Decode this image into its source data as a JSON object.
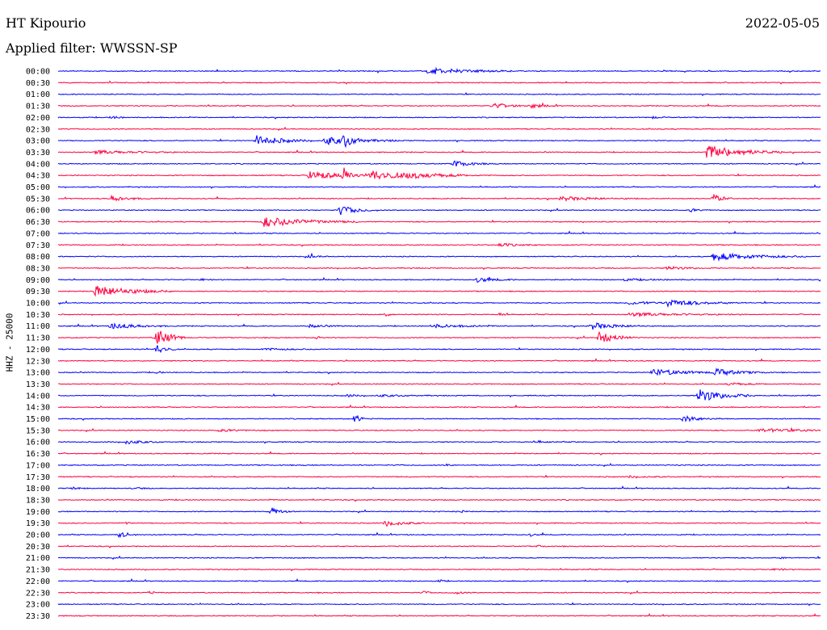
{
  "header": {
    "station": "HT Kipourio",
    "date": "2022-05-05",
    "filter": "Applied filter: WWSSN-SP",
    "channel": "HHZ - 25000"
  },
  "colors": {
    "even_hour": "#0000ff",
    "half_hour": "#ff0040",
    "text": "#000000",
    "background": "#ffffff"
  },
  "chart_data": {
    "type": "line",
    "title": "",
    "xlabel": "",
    "ylabel": "HHZ - 25000",
    "grid": false,
    "legend": "none",
    "rows": [
      {
        "label": "00:00",
        "events": [
          [
            0.485,
            1.0,
            0.045
          ]
        ]
      },
      {
        "label": "00:30",
        "events": []
      },
      {
        "label": "01:00",
        "events": []
      },
      {
        "label": "01:30",
        "events": [
          [
            0.57,
            0.8,
            0.02
          ],
          [
            0.62,
            0.6,
            0.015
          ]
        ]
      },
      {
        "label": "02:00",
        "events": [
          [
            0.07,
            0.4,
            0.01
          ],
          [
            0.78,
            0.3,
            0.01
          ]
        ]
      },
      {
        "label": "02:30",
        "events": []
      },
      {
        "label": "03:00",
        "events": [
          [
            0.26,
            1.6,
            0.03
          ],
          [
            0.35,
            1.2,
            0.04
          ],
          [
            0.375,
            1.5,
            0.01
          ]
        ]
      },
      {
        "label": "03:30",
        "events": [
          [
            0.05,
            0.5,
            0.05
          ],
          [
            0.85,
            2.2,
            0.04
          ]
        ]
      },
      {
        "label": "04:00",
        "events": [
          [
            0.52,
            0.9,
            0.02
          ]
        ]
      },
      {
        "label": "04:30",
        "events": [
          [
            0.33,
            1.2,
            0.04
          ],
          [
            0.375,
            2.5,
            0.005
          ],
          [
            0.41,
            1.3,
            0.05
          ],
          [
            0.46,
            0.5,
            0.04
          ]
        ]
      },
      {
        "label": "05:00",
        "events": []
      },
      {
        "label": "05:30",
        "events": [
          [
            0.07,
            0.8,
            0.02
          ],
          [
            0.66,
            0.6,
            0.04
          ],
          [
            0.86,
            1.3,
            0.01
          ]
        ]
      },
      {
        "label": "06:00",
        "events": [
          [
            0.37,
            1.4,
            0.02
          ],
          [
            0.83,
            0.4,
            0.01
          ]
        ]
      },
      {
        "label": "06:30",
        "events": [
          [
            0.27,
            1.6,
            0.05
          ]
        ]
      },
      {
        "label": "07:00",
        "events": []
      },
      {
        "label": "07:30",
        "events": [
          [
            0.58,
            0.5,
            0.02
          ]
        ]
      },
      {
        "label": "08:00",
        "events": [
          [
            0.33,
            0.5,
            0.01
          ],
          [
            0.86,
            1.2,
            0.05
          ]
        ]
      },
      {
        "label": "08:30",
        "events": [
          [
            0.8,
            0.5,
            0.02
          ]
        ]
      },
      {
        "label": "09:00",
        "events": [
          [
            0.19,
            0.4,
            0.005
          ],
          [
            0.55,
            0.7,
            0.02
          ],
          [
            0.74,
            0.3,
            0.04
          ]
        ]
      },
      {
        "label": "09:30",
        "events": [
          [
            0.05,
            1.8,
            0.04
          ]
        ]
      },
      {
        "label": "10:00",
        "events": [
          [
            0.75,
            0.5,
            0.03
          ],
          [
            0.8,
            1.0,
            0.04
          ]
        ]
      },
      {
        "label": "10:30",
        "events": [
          [
            0.43,
            0.5,
            0.005
          ],
          [
            0.58,
            0.5,
            0.005
          ],
          [
            0.75,
            0.5,
            0.06
          ]
        ]
      },
      {
        "label": "11:00",
        "events": [
          [
            0.07,
            0.9,
            0.03
          ],
          [
            0.33,
            0.4,
            0.02
          ],
          [
            0.49,
            0.5,
            0.04
          ],
          [
            0.7,
            1.0,
            0.03
          ]
        ]
      },
      {
        "label": "11:30",
        "events": [
          [
            0.13,
            3.0,
            0.015
          ],
          [
            0.34,
            0.5,
            0.005
          ],
          [
            0.71,
            1.7,
            0.02
          ]
        ]
      },
      {
        "label": "12:00",
        "events": [
          [
            0.13,
            1.5,
            0.01
          ],
          [
            0.27,
            0.3,
            0.03
          ]
        ]
      },
      {
        "label": "12:30",
        "events": []
      },
      {
        "label": "13:00",
        "events": [
          [
            0.78,
            1.0,
            0.04
          ],
          [
            0.86,
            1.0,
            0.03
          ],
          [
            0.13,
            0.4,
            0.005
          ]
        ]
      },
      {
        "label": "13:30",
        "events": [
          [
            0.88,
            0.4,
            0.02
          ]
        ]
      },
      {
        "label": "14:00",
        "events": [
          [
            0.84,
            2.0,
            0.03
          ],
          [
            0.38,
            0.4,
            0.01
          ],
          [
            0.42,
            0.3,
            0.03
          ]
        ]
      },
      {
        "label": "14:30",
        "events": []
      },
      {
        "label": "15:00",
        "events": [
          [
            0.39,
            1.6,
            0.005
          ],
          [
            0.82,
            0.9,
            0.02
          ]
        ]
      },
      {
        "label": "15:30",
        "events": [
          [
            0.21,
            0.3,
            0.03
          ],
          [
            0.92,
            0.5,
            0.06
          ]
        ]
      },
      {
        "label": "16:00",
        "events": [
          [
            0.09,
            0.6,
            0.02
          ],
          [
            0.63,
            0.3,
            0.01
          ]
        ]
      },
      {
        "label": "16:30",
        "events": []
      },
      {
        "label": "17:00",
        "events": [
          [
            0.51,
            0.3,
            0.005
          ]
        ]
      },
      {
        "label": "17:30",
        "events": [
          [
            0.75,
            0.3,
            0.02
          ]
        ]
      },
      {
        "label": "18:00",
        "events": [
          [
            0.02,
            0.3,
            0.01
          ],
          [
            0.1,
            0.3,
            0.01
          ]
        ]
      },
      {
        "label": "18:30",
        "events": []
      },
      {
        "label": "19:00",
        "events": [
          [
            0.28,
            1.2,
            0.01
          ],
          [
            0.53,
            0.3,
            0.005
          ]
        ]
      },
      {
        "label": "19:30",
        "events": [
          [
            0.43,
            1.0,
            0.02
          ],
          [
            0.09,
            0.3,
            0.005
          ]
        ]
      },
      {
        "label": "20:00",
        "events": [
          [
            0.08,
            0.9,
            0.01
          ],
          [
            0.62,
            0.4,
            0.005
          ]
        ]
      },
      {
        "label": "20:30",
        "events": [
          [
            0.63,
            0.3,
            0.005
          ]
        ]
      },
      {
        "label": "21:00",
        "events": [
          [
            0.95,
            0.3,
            0.005
          ]
        ]
      },
      {
        "label": "21:30",
        "events": [
          [
            0.94,
            0.4,
            0.01
          ]
        ]
      },
      {
        "label": "22:00",
        "events": [
          [
            0.5,
            0.4,
            0.005
          ]
        ]
      },
      {
        "label": "22:30",
        "events": [
          [
            0.12,
            0.4,
            0.005
          ],
          [
            0.48,
            0.5,
            0.005
          ],
          [
            0.52,
            0.4,
            0.01
          ]
        ]
      },
      {
        "label": "23:00",
        "events": []
      },
      {
        "label": "23:30",
        "events": []
      }
    ]
  }
}
